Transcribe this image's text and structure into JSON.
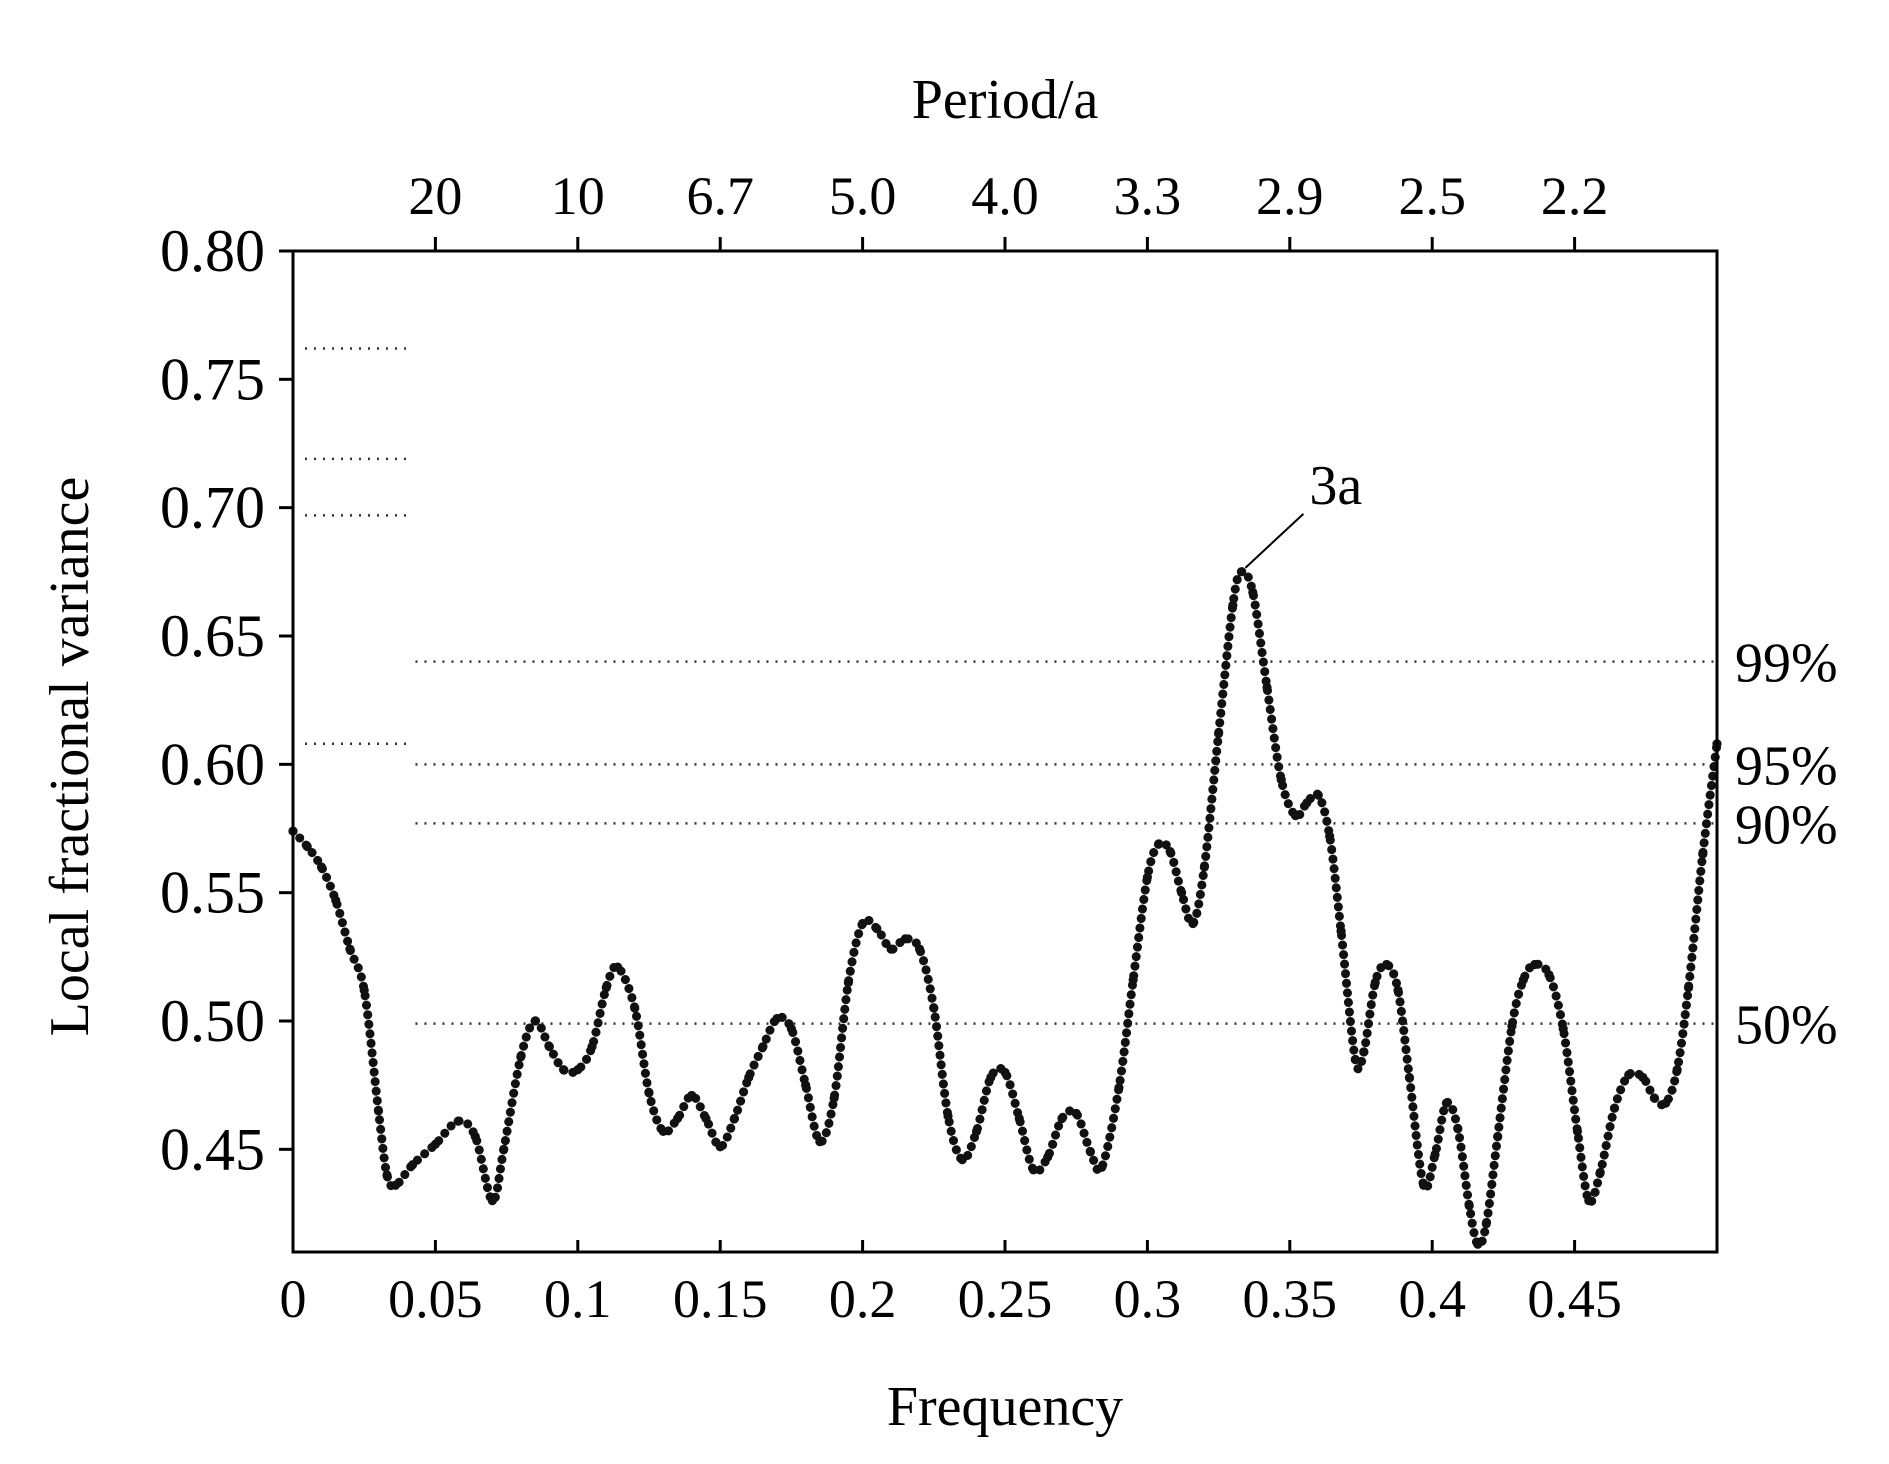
{
  "chart_data": {
    "type": "line",
    "title": "",
    "xlabel": "Frequency",
    "ylabel": "Local fractional variance",
    "top_axis_label": "Period/a",
    "xlim": [
      0,
      0.5
    ],
    "ylim": [
      0.41,
      0.8
    ],
    "x_ticks": [
      0,
      0.05,
      0.1,
      0.15,
      0.2,
      0.25,
      0.3,
      0.35,
      0.4,
      0.45
    ],
    "x_tick_labels": [
      "0",
      "0.05",
      "0.1",
      "0.15",
      "0.2",
      "0.25",
      "0.3",
      "0.35",
      "0.4",
      "0.45"
    ],
    "y_ticks": [
      0.45,
      0.5,
      0.55,
      0.6,
      0.65,
      0.7,
      0.75,
      0.8
    ],
    "y_tick_labels": [
      "0.45",
      "0.50",
      "0.55",
      "0.60",
      "0.65",
      "0.70",
      "0.75",
      "0.80"
    ],
    "top_ticks": [
      0.05,
      0.1,
      0.15,
      0.2,
      0.25,
      0.3,
      0.35,
      0.4,
      0.45
    ],
    "top_tick_labels": [
      "20",
      "10",
      "6.7",
      "5.0",
      "4.0",
      "3.3",
      "2.9",
      "2.5",
      "2.2"
    ],
    "confidence_levels": [
      {
        "label": "99%",
        "y": 0.64
      },
      {
        "label": "95%",
        "y": 0.6
      },
      {
        "label": "90%",
        "y": 0.577
      },
      {
        "label": "50%",
        "y": 0.499
      }
    ],
    "short_levels": [
      0.762,
      0.719,
      0.697,
      0.608
    ],
    "annotations": [
      {
        "text": "3a",
        "x": 0.333,
        "y": 0.675
      }
    ],
    "grid": false,
    "series": [
      {
        "color": "#111111",
        "points": [
          [
            0.0,
            0.574
          ],
          [
            0.005,
            0.568
          ],
          [
            0.01,
            0.56
          ],
          [
            0.015,
            0.547
          ],
          [
            0.02,
            0.528
          ],
          [
            0.025,
            0.512
          ],
          [
            0.03,
            0.465
          ],
          [
            0.033,
            0.44
          ],
          [
            0.036,
            0.436
          ],
          [
            0.042,
            0.444
          ],
          [
            0.05,
            0.452
          ],
          [
            0.058,
            0.461
          ],
          [
            0.064,
            0.455
          ],
          [
            0.07,
            0.43
          ],
          [
            0.074,
            0.45
          ],
          [
            0.08,
            0.486
          ],
          [
            0.085,
            0.5
          ],
          [
            0.09,
            0.49
          ],
          [
            0.095,
            0.481
          ],
          [
            0.1,
            0.481
          ],
          [
            0.105,
            0.49
          ],
          [
            0.11,
            0.513
          ],
          [
            0.114,
            0.521
          ],
          [
            0.12,
            0.505
          ],
          [
            0.125,
            0.472
          ],
          [
            0.13,
            0.457
          ],
          [
            0.135,
            0.462
          ],
          [
            0.14,
            0.471
          ],
          [
            0.145,
            0.462
          ],
          [
            0.15,
            0.451
          ],
          [
            0.155,
            0.462
          ],
          [
            0.16,
            0.478
          ],
          [
            0.165,
            0.49
          ],
          [
            0.17,
            0.501
          ],
          [
            0.175,
            0.497
          ],
          [
            0.18,
            0.475
          ],
          [
            0.185,
            0.453
          ],
          [
            0.19,
            0.47
          ],
          [
            0.195,
            0.515
          ],
          [
            0.2,
            0.538
          ],
          [
            0.205,
            0.536
          ],
          [
            0.21,
            0.528
          ],
          [
            0.215,
            0.532
          ],
          [
            0.22,
            0.528
          ],
          [
            0.225,
            0.505
          ],
          [
            0.23,
            0.463
          ],
          [
            0.235,
            0.446
          ],
          [
            0.24,
            0.457
          ],
          [
            0.245,
            0.478
          ],
          [
            0.25,
            0.48
          ],
          [
            0.255,
            0.462
          ],
          [
            0.26,
            0.442
          ],
          [
            0.265,
            0.447
          ],
          [
            0.27,
            0.462
          ],
          [
            0.275,
            0.464
          ],
          [
            0.28,
            0.449
          ],
          [
            0.284,
            0.443
          ],
          [
            0.29,
            0.474
          ],
          [
            0.295,
            0.516
          ],
          [
            0.3,
            0.556
          ],
          [
            0.304,
            0.569
          ],
          [
            0.308,
            0.566
          ],
          [
            0.312,
            0.55
          ],
          [
            0.316,
            0.538
          ],
          [
            0.32,
            0.56
          ],
          [
            0.325,
            0.612
          ],
          [
            0.33,
            0.662
          ],
          [
            0.333,
            0.675
          ],
          [
            0.337,
            0.667
          ],
          [
            0.342,
            0.63
          ],
          [
            0.347,
            0.594
          ],
          [
            0.352,
            0.58
          ],
          [
            0.356,
            0.585
          ],
          [
            0.36,
            0.588
          ],
          [
            0.364,
            0.572
          ],
          [
            0.368,
            0.535
          ],
          [
            0.373,
            0.485
          ],
          [
            0.376,
            0.488
          ],
          [
            0.38,
            0.515
          ],
          [
            0.384,
            0.522
          ],
          [
            0.388,
            0.512
          ],
          [
            0.392,
            0.478
          ],
          [
            0.397,
            0.436
          ],
          [
            0.401,
            0.448
          ],
          [
            0.405,
            0.468
          ],
          [
            0.409,
            0.458
          ],
          [
            0.413,
            0.428
          ],
          [
            0.416,
            0.413
          ],
          [
            0.419,
            0.421
          ],
          [
            0.423,
            0.455
          ],
          [
            0.428,
            0.498
          ],
          [
            0.432,
            0.516
          ],
          [
            0.436,
            0.522
          ],
          [
            0.441,
            0.518
          ],
          [
            0.446,
            0.497
          ],
          [
            0.451,
            0.457
          ],
          [
            0.455,
            0.43
          ],
          [
            0.459,
            0.441
          ],
          [
            0.464,
            0.466
          ],
          [
            0.469,
            0.479
          ],
          [
            0.474,
            0.478
          ],
          [
            0.478,
            0.47
          ],
          [
            0.482,
            0.468
          ],
          [
            0.486,
            0.481
          ],
          [
            0.49,
            0.513
          ],
          [
            0.495,
            0.565
          ],
          [
            0.5,
            0.608
          ]
        ]
      }
    ]
  }
}
